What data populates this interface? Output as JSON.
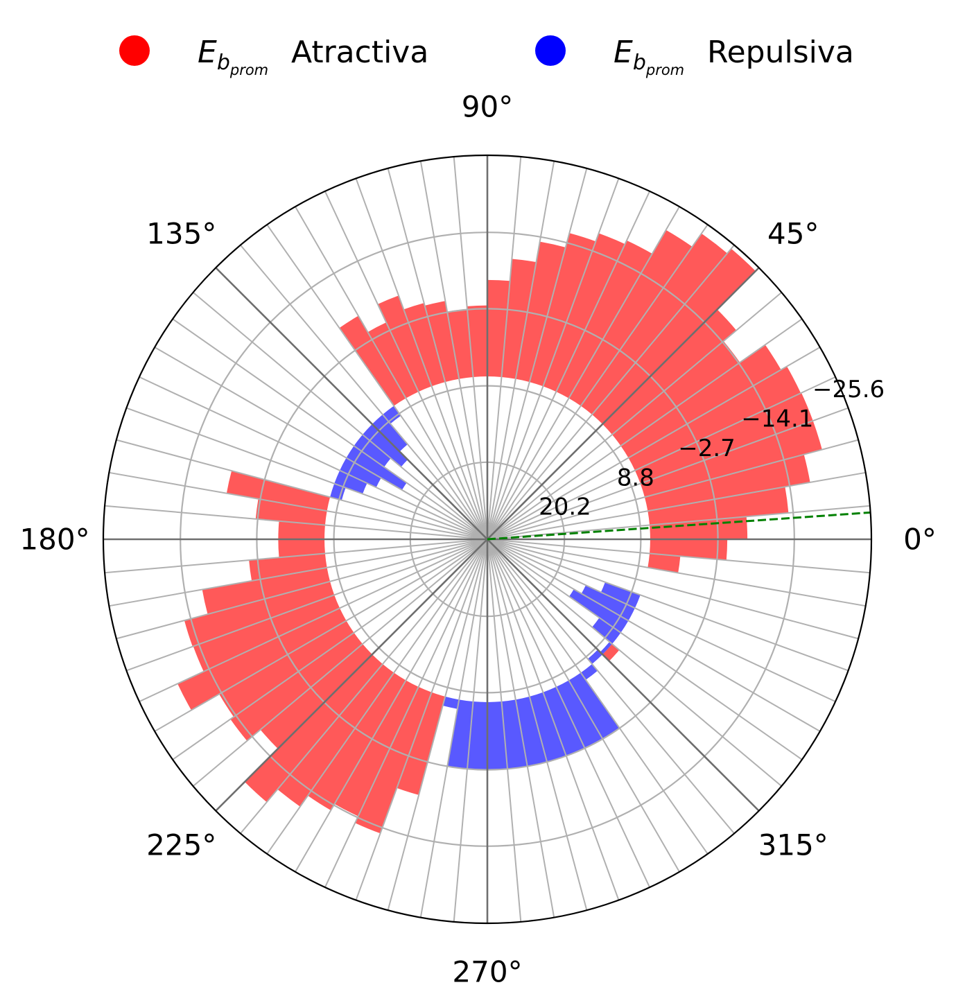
{
  "chart_data": {
    "type": "bar",
    "projection": "polar",
    "title": "",
    "legend_placement": "top",
    "legend": [
      {
        "symbol_base": "E",
        "symbol_sub": "b",
        "symbol_subsub": "prom",
        "label": "Atractiva",
        "color": "#ff0000"
      },
      {
        "symbol_base": "E",
        "symbol_sub": "b",
        "symbol_subsub": "prom",
        "label": "Repulsiva",
        "color": "#0000ff"
      }
    ],
    "angle_ticks": [
      "0°",
      "45°",
      "90°",
      "135°",
      "180°",
      "225°",
      "270°",
      "315°"
    ],
    "angle_tick_values": [
      0,
      45,
      90,
      135,
      180,
      225,
      270,
      315
    ],
    "radial_ticks": [
      "20.2",
      "8.8",
      "−2.7",
      "−14.1",
      "−25.6"
    ],
    "radial_tick_values": [
      20.2,
      8.8,
      -2.7,
      -14.1,
      -25.6
    ],
    "radial_axis": "energy axis reversed: center 31.7, edge -25.6",
    "radial_range": [
      31.7,
      -25.6
    ],
    "radial_label_angle_deg": 22.5,
    "grid": true,
    "bin_width_deg": 5,
    "baseline_energy": 7.4,
    "bin_centers_deg": [
      2.5,
      7.5,
      12.5,
      17.5,
      22.5,
      27.5,
      32.5,
      37.5,
      42.5,
      47.5,
      52.5,
      57.5,
      62.5,
      67.5,
      72.5,
      77.5,
      82.5,
      87.5,
      92.5,
      97.5,
      102.5,
      107.5,
      112.5,
      117.5,
      122.5,
      127.5,
      132.5,
      137.5,
      142.5,
      147.5,
      152.5,
      157.5,
      162.5,
      167.5,
      172.5,
      177.5,
      182.5,
      187.5,
      192.5,
      197.5,
      202.5,
      207.5,
      212.5,
      217.5,
      222.5,
      227.5,
      232.5,
      237.5,
      242.5,
      247.5,
      252.5,
      257.5,
      262.5,
      267.5,
      272.5,
      277.5,
      282.5,
      287.5,
      292.5,
      297.5,
      302.5,
      307.5,
      312.5,
      317.5,
      322.5,
      327.5,
      332.5,
      337.5,
      342.5,
      347.5,
      352.5,
      357.5
    ],
    "series": [
      {
        "name": "Atractiva",
        "color": "#ff0000",
        "energy": [
          -7.1,
          -13.4,
          -17.2,
          -20.0,
          -20.0,
          -19.9,
          -18.9,
          -14.3,
          -16.8,
          -24.9,
          -24.0,
          -21.6,
          -17.5,
          -16.9,
          -15.6,
          -13.4,
          -10.3,
          -7.0,
          -3.2,
          -2.8,
          -4.4,
          -4.8,
          -7.0,
          -4.0,
          -6.8,
          null,
          null,
          null,
          null,
          null,
          null,
          null,
          null,
          -7.8,
          -3.0,
          0.5,
          0.5,
          -4.0,
          -11.5,
          -15.1,
          -15.0,
          -19.3,
          -14.5,
          -15.1,
          -12.5,
          -19.5,
          -17.0,
          -15.0,
          -13.9,
          -15.0,
          -7.8,
          null,
          null,
          null,
          null,
          null,
          null,
          null,
          null,
          null,
          null,
          null,
          null,
          6.0,
          null,
          null,
          null,
          null,
          null,
          null,
          2.8,
          -4.1
        ]
      },
      {
        "name": "Repulsiva",
        "color": "#0000ff",
        "energy": [
          null,
          null,
          null,
          null,
          null,
          null,
          null,
          null,
          null,
          null,
          null,
          null,
          null,
          null,
          null,
          null,
          null,
          null,
          null,
          null,
          null,
          null,
          null,
          null,
          null,
          9.2,
          13.2,
          14.9,
          12.9,
          17.0,
          13.4,
          11.9,
          9.2,
          null,
          null,
          null,
          null,
          null,
          null,
          null,
          null,
          null,
          null,
          null,
          null,
          null,
          null,
          null,
          null,
          null,
          null,
          6.0,
          -2.7,
          -2.7,
          -2.7,
          -2.7,
          -2.7,
          -2.7,
          -2.7,
          -2.7,
          -2.7,
          6.1,
          8.4,
          7.9,
          11.3,
          16.8,
          15.5,
          13.0,
          7.4,
          7.4,
          null,
          null
        ]
      }
    ],
    "reference_line": {
      "style": "dashed",
      "color": "#008000",
      "angle_deg": 4
    }
  }
}
